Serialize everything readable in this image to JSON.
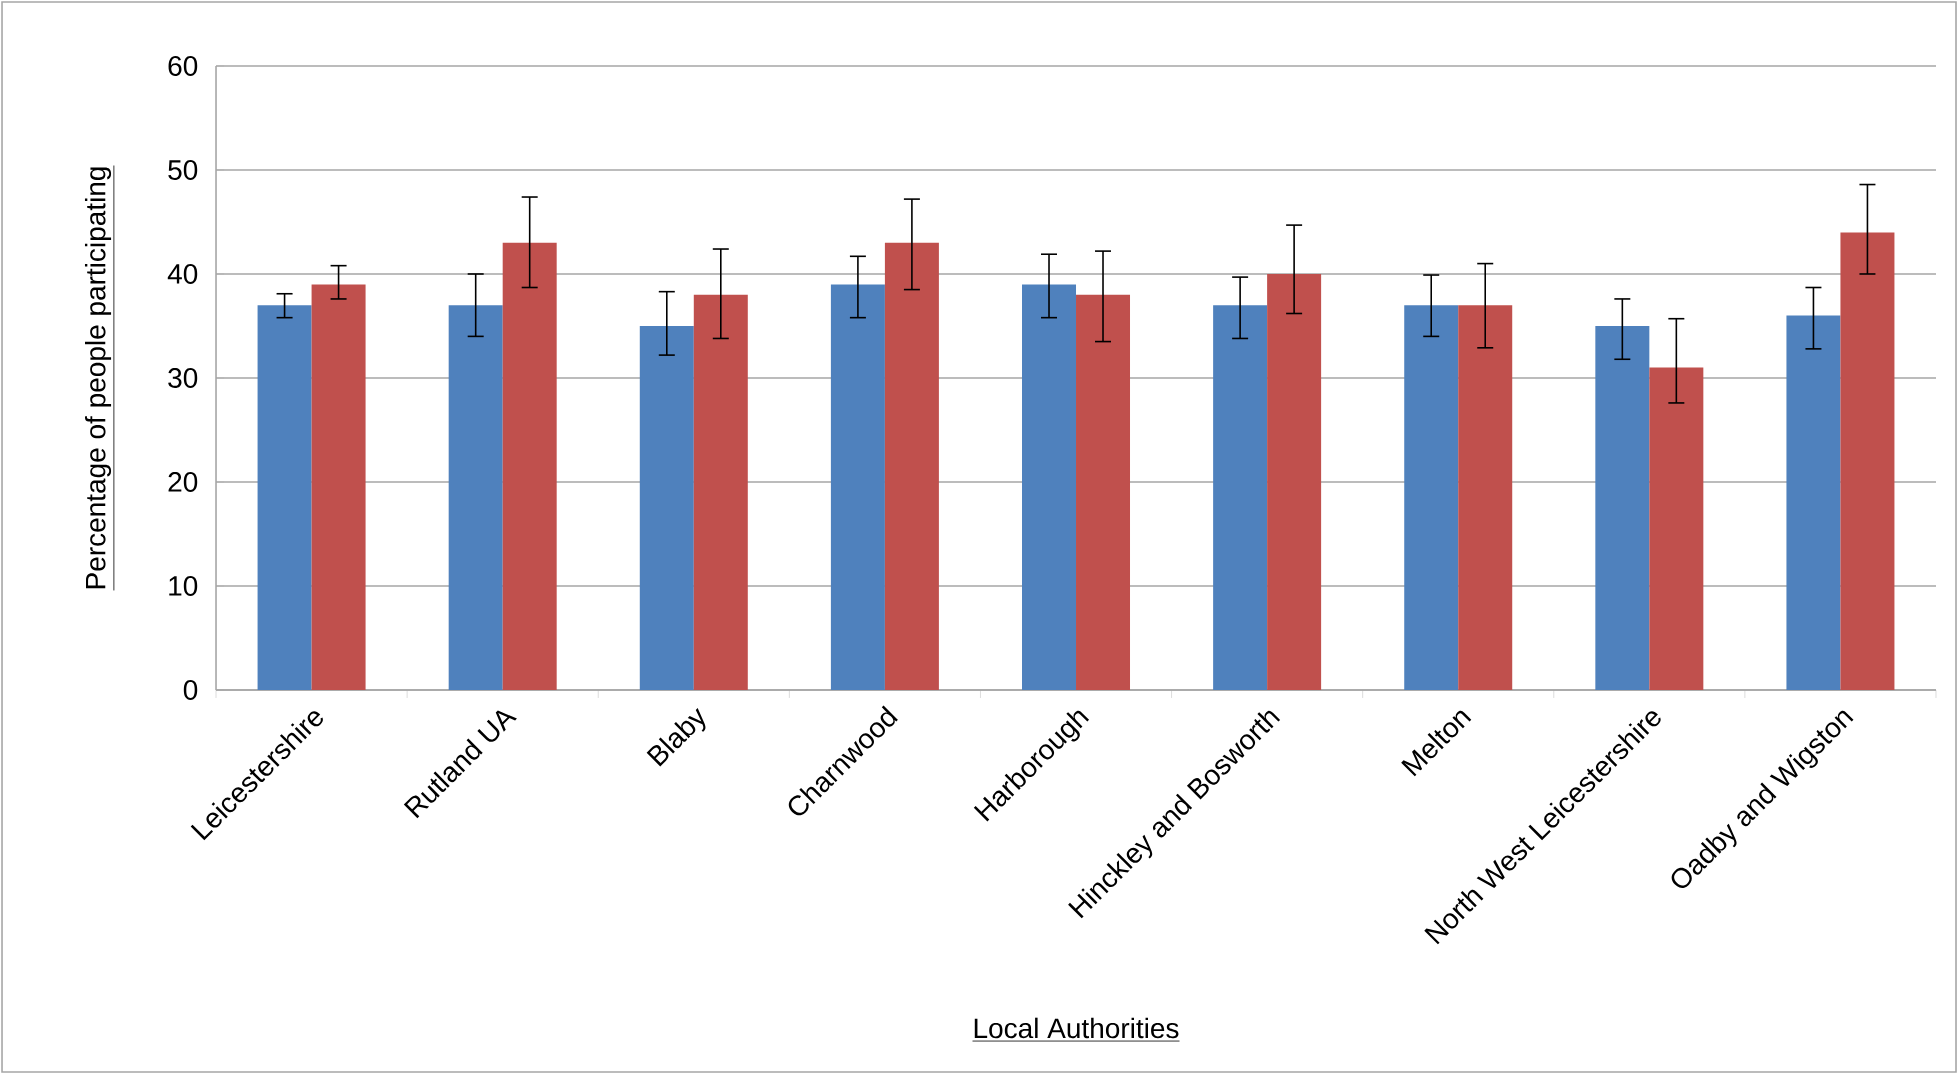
{
  "chart_data": {
    "type": "bar",
    "xlabel": "Local Authorities",
    "ylabel": "Percentage of people participating",
    "categories": [
      "Leicestershire",
      "Rutland UA",
      "Blaby",
      "Charnwood",
      "Harborough",
      "Hinckley and Bosworth",
      "Melton",
      "North West Leicestershire",
      "Oadby and Wigston"
    ],
    "series": [
      {
        "color": "#4f81bd",
        "values": [
          37,
          37,
          35,
          39,
          39,
          37,
          37,
          35,
          36
        ],
        "errors": [
          [
            35.8,
            38.1
          ],
          [
            34.0,
            40.0
          ],
          [
            32.2,
            38.3
          ],
          [
            35.8,
            41.7
          ],
          [
            35.8,
            41.9
          ],
          [
            33.8,
            39.7
          ],
          [
            34.0,
            39.9
          ],
          [
            31.8,
            37.6
          ],
          [
            32.8,
            38.7
          ]
        ]
      },
      {
        "color": "#c0504d",
        "values": [
          39,
          43,
          38,
          43,
          38,
          40,
          37,
          31,
          44
        ],
        "errors": [
          [
            37.6,
            40.8
          ],
          [
            38.7,
            47.4
          ],
          [
            33.8,
            42.4
          ],
          [
            38.5,
            47.2
          ],
          [
            33.5,
            42.2
          ],
          [
            36.2,
            44.7
          ],
          [
            32.9,
            41.0
          ],
          [
            27.6,
            35.7
          ],
          [
            40.0,
            48.6
          ]
        ]
      }
    ],
    "ylim": [
      0,
      60
    ],
    "yticks": [
      0,
      10,
      20,
      30,
      40,
      50,
      60
    ],
    "grid": "y"
  }
}
